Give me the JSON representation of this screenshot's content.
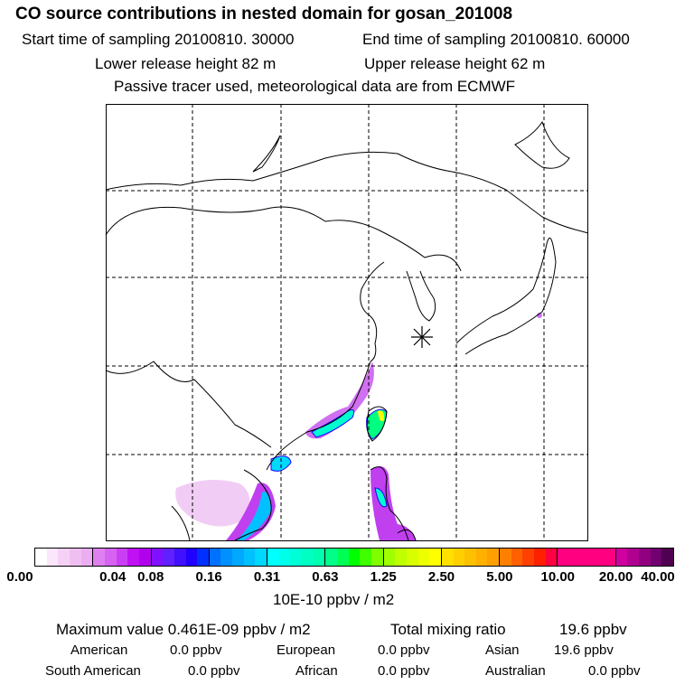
{
  "header": {
    "title": "CO  source contributions in nested domain for gosan_201008",
    "start_label": "Start time of sampling 20100810. 30000",
    "end_label": "End time of sampling 20100810. 60000",
    "lower_height": "Lower release height   82 m",
    "upper_height": "Upper release height   62 m",
    "note": "Passive tracer used, meteorological data are from ECMWF"
  },
  "map": {
    "station_marker": "asterisk-icon",
    "coast_color": "#000000",
    "grid_color": "#000000"
  },
  "colorbar": {
    "ticks": [
      "0.00",
      "0.04",
      "0.08",
      "0.16",
      "0.31",
      "0.63",
      "1.25",
      "2.50",
      "5.00",
      "10.00",
      "20.00",
      "40.00"
    ],
    "unit": "10E-10 ppbv / m2",
    "segments": [
      [
        "#ffffff",
        "#fbe6fb",
        "#f5d2f5",
        "#f0bff2",
        "#ecaef0"
      ],
      [
        "#df80f0",
        "#d663f2",
        "#cb3ff4",
        "#c010f4",
        "#b000ee"
      ],
      [
        "#8010ff",
        "#6020ff",
        "#4010ff",
        "#2000ff",
        "#0030ff"
      ],
      [
        "#0070ff",
        "#0090ff",
        "#00a8ff",
        "#00c0ff",
        "#00d8ff"
      ],
      [
        "#00ffff",
        "#00ffea",
        "#00ffd6",
        "#00ffc2",
        "#00ffae"
      ],
      [
        "#00ff88",
        "#00ff55",
        "#00ff00",
        "#40ff00",
        "#80ff00"
      ],
      [
        "#a0ff00",
        "#c0ff00",
        "#d8ff00",
        "#eeff00",
        "#ffff00"
      ],
      [
        "#ffe000",
        "#ffd000",
        "#ffc000",
        "#ffb000",
        "#ffa000"
      ],
      [
        "#ff8000",
        "#ff6000",
        "#ff4000",
        "#ff2000",
        "#ff0040"
      ],
      [
        "#ff0080",
        "#ff0080",
        "#ff0080",
        "#ff0080",
        "#ff0080"
      ],
      [
        "#d000a0",
        "#b00090",
        "#900080",
        "#700070",
        "#500050"
      ]
    ]
  },
  "summary": {
    "max_label": "Maximum value  0.461E-09 ppbv / m2",
    "total_label": "Total mixing ratio",
    "total_value": "19.6 ppbv",
    "regions": [
      {
        "name": "American",
        "value": "0.0 ppbv"
      },
      {
        "name": "European",
        "value": "0.0 ppbv"
      },
      {
        "name": "Asian",
        "value": "19.6 ppbv"
      },
      {
        "name": "South American",
        "value": "0.0 ppbv"
      },
      {
        "name": "African",
        "value": "0.0 ppbv"
      },
      {
        "name": "Australian",
        "value": "0.0 ppbv"
      }
    ]
  }
}
